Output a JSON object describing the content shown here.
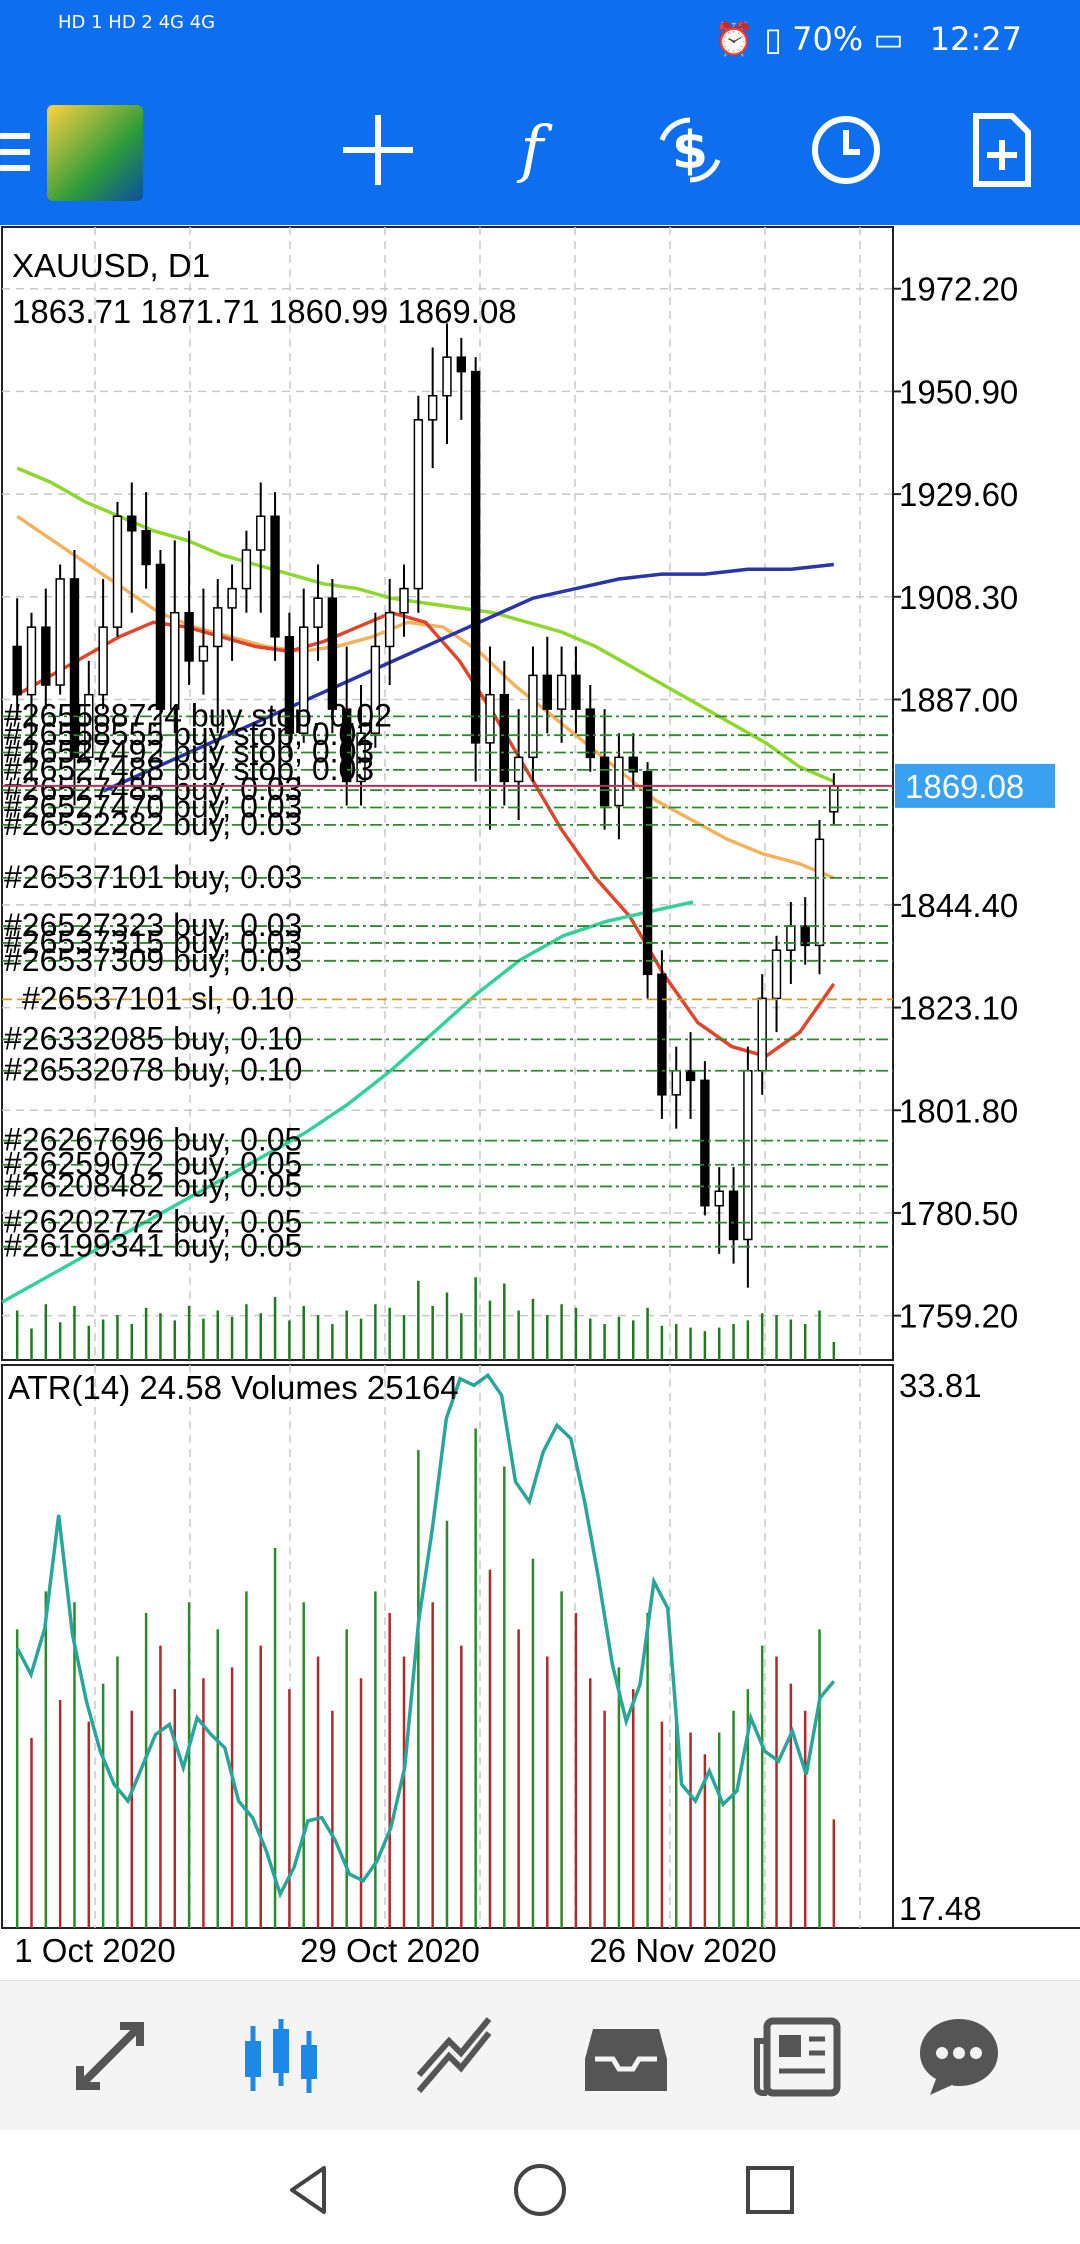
{
  "status_bar": {
    "network_left": "HD 1  HD 2  4G  4G",
    "battery": "70%",
    "time": "12:27",
    "icons": [
      "alarm-icon",
      "vibrate-icon",
      "battery-charging-icon"
    ]
  },
  "toolbar": {
    "icons": [
      "menu-icon",
      "metatrader-logo",
      "crosshair-icon",
      "indicators-icon",
      "symbol-icon",
      "timeframe-icon",
      "new-order-icon"
    ]
  },
  "chart_header": {
    "symbol": "XAUUSD, D1",
    "ohlc": "1863.71 1871.71 1860.99 1869.08"
  },
  "current_price_label": "1869.08",
  "chart_data": [
    {
      "type": "candlestick",
      "title": "XAUUSD, D1",
      "ylim": [
        1750,
        1985
      ],
      "y_ticks": [
        "1972.20",
        "1950.90",
        "1929.60",
        "1908.30",
        "1887.00",
        "1844.40",
        "1823.10",
        "1801.80",
        "1780.50",
        "1759.20"
      ],
      "x_ticks": [
        "1 Oct 2020",
        "29 Oct 2020",
        "26 Nov 2020"
      ],
      "current_price": 1869.08,
      "candles": [
        {
          "o": 1898,
          "h": 1908,
          "l": 1883,
          "c": 1888
        },
        {
          "o": 1888,
          "h": 1905,
          "l": 1870,
          "c": 1902
        },
        {
          "o": 1902,
          "h": 1910,
          "l": 1885,
          "c": 1890
        },
        {
          "o": 1890,
          "h": 1915,
          "l": 1888,
          "c": 1912
        },
        {
          "o": 1912,
          "h": 1918,
          "l": 1865,
          "c": 1875
        },
        {
          "o": 1875,
          "h": 1895,
          "l": 1873,
          "c": 1888
        },
        {
          "o": 1888,
          "h": 1912,
          "l": 1885,
          "c": 1902
        },
        {
          "o": 1902,
          "h": 1928,
          "l": 1900,
          "c": 1925
        },
        {
          "o": 1925,
          "h": 1932,
          "l": 1905,
          "c": 1922
        },
        {
          "o": 1922,
          "h": 1930,
          "l": 1910,
          "c": 1915
        },
        {
          "o": 1915,
          "h": 1918,
          "l": 1875,
          "c": 1885
        },
        {
          "o": 1885,
          "h": 1920,
          "l": 1880,
          "c": 1905
        },
        {
          "o": 1905,
          "h": 1922,
          "l": 1890,
          "c": 1895
        },
        {
          "o": 1895,
          "h": 1910,
          "l": 1888,
          "c": 1898
        },
        {
          "o": 1898,
          "h": 1912,
          "l": 1880,
          "c": 1906
        },
        {
          "o": 1906,
          "h": 1915,
          "l": 1895,
          "c": 1910
        },
        {
          "o": 1910,
          "h": 1922,
          "l": 1905,
          "c": 1918
        },
        {
          "o": 1918,
          "h": 1932,
          "l": 1905,
          "c": 1925
        },
        {
          "o": 1925,
          "h": 1930,
          "l": 1895,
          "c": 1900
        },
        {
          "o": 1900,
          "h": 1905,
          "l": 1875,
          "c": 1880
        },
        {
          "o": 1880,
          "h": 1910,
          "l": 1878,
          "c": 1902
        },
        {
          "o": 1902,
          "h": 1915,
          "l": 1895,
          "c": 1908
        },
        {
          "o": 1908,
          "h": 1912,
          "l": 1880,
          "c": 1885
        },
        {
          "o": 1885,
          "h": 1898,
          "l": 1865,
          "c": 1870
        },
        {
          "o": 1870,
          "h": 1890,
          "l": 1865,
          "c": 1880
        },
        {
          "o": 1880,
          "h": 1905,
          "l": 1877,
          "c": 1898
        },
        {
          "o": 1898,
          "h": 1912,
          "l": 1890,
          "c": 1905
        },
        {
          "o": 1905,
          "h": 1915,
          "l": 1900,
          "c": 1910
        },
        {
          "o": 1910,
          "h": 1950,
          "l": 1905,
          "c": 1945
        },
        {
          "o": 1945,
          "h": 1960,
          "l": 1935,
          "c": 1950
        },
        {
          "o": 1950,
          "h": 1965,
          "l": 1940,
          "c": 1958
        },
        {
          "o": 1958,
          "h": 1962,
          "l": 1945,
          "c": 1955
        },
        {
          "o": 1955,
          "h": 1958,
          "l": 1870,
          "c": 1878
        },
        {
          "o": 1878,
          "h": 1898,
          "l": 1860,
          "c": 1888
        },
        {
          "o": 1888,
          "h": 1895,
          "l": 1865,
          "c": 1870
        },
        {
          "o": 1870,
          "h": 1885,
          "l": 1862,
          "c": 1875
        },
        {
          "o": 1875,
          "h": 1898,
          "l": 1870,
          "c": 1892
        },
        {
          "o": 1892,
          "h": 1900,
          "l": 1880,
          "c": 1885
        },
        {
          "o": 1885,
          "h": 1898,
          "l": 1878,
          "c": 1892
        },
        {
          "o": 1892,
          "h": 1898,
          "l": 1880,
          "c": 1885
        },
        {
          "o": 1885,
          "h": 1890,
          "l": 1872,
          "c": 1875
        },
        {
          "o": 1875,
          "h": 1885,
          "l": 1860,
          "c": 1865
        },
        {
          "o": 1865,
          "h": 1880,
          "l": 1858,
          "c": 1875
        },
        {
          "o": 1875,
          "h": 1880,
          "l": 1868,
          "c": 1872
        },
        {
          "o": 1872,
          "h": 1874,
          "l": 1825,
          "c": 1830
        },
        {
          "o": 1830,
          "h": 1835,
          "l": 1800,
          "c": 1805
        },
        {
          "o": 1805,
          "h": 1815,
          "l": 1798,
          "c": 1810
        },
        {
          "o": 1810,
          "h": 1818,
          "l": 1800,
          "c": 1808
        },
        {
          "o": 1808,
          "h": 1812,
          "l": 1780,
          "c": 1782
        },
        {
          "o": 1782,
          "h": 1790,
          "l": 1772,
          "c": 1785
        },
        {
          "o": 1785,
          "h": 1790,
          "l": 1770,
          "c": 1775
        },
        {
          "o": 1775,
          "h": 1815,
          "l": 1765,
          "c": 1810
        },
        {
          "o": 1810,
          "h": 1830,
          "l": 1805,
          "c": 1825
        },
        {
          "o": 1825,
          "h": 1838,
          "l": 1818,
          "c": 1835
        },
        {
          "o": 1835,
          "h": 1845,
          "l": 1828,
          "c": 1840
        },
        {
          "o": 1840,
          "h": 1846,
          "l": 1832,
          "c": 1836
        },
        {
          "o": 1836,
          "h": 1862,
          "l": 1830,
          "c": 1858
        },
        {
          "o": 1863.71,
          "h": 1871.71,
          "l": 1860.99,
          "c": 1869.08
        }
      ],
      "overlays": [
        {
          "name": "",
          "color": "#8fd62f",
          "values": [
            1935,
            1932,
            1928,
            1925,
            1922,
            1920,
            1917,
            1915,
            1913,
            1911,
            1910,
            1908,
            1907,
            1906,
            1905,
            1903,
            1901,
            1898,
            1894,
            1890,
            1886,
            1882,
            1878,
            1873,
            1870
          ]
        },
        {
          "name": "",
          "color": "#f2b25e",
          "values": [
            1925,
            1920,
            1915,
            1910,
            1905,
            1902,
            1900,
            1898,
            1897,
            1898,
            1900,
            1903,
            1902,
            1897,
            1890,
            1884,
            1878,
            1872,
            1866,
            1862,
            1858,
            1855,
            1853,
            1850
          ]
        },
        {
          "name": "",
          "color": "#e0462b",
          "values": [
            1888,
            1892,
            1896,
            1900,
            1903,
            1902,
            1900,
            1898,
            1897,
            1899,
            1902,
            1905,
            1903,
            1895,
            1884,
            1872,
            1860,
            1850,
            1842,
            1830,
            1820,
            1815,
            1813,
            1818,
            1828
          ]
        },
        {
          "name": "",
          "color": "#2a35a8",
          "values": [
            1868,
            1872,
            1876,
            1880,
            1884,
            1888,
            1892,
            1896,
            1900,
            1904,
            1908,
            1910,
            1912,
            1913,
            1913,
            1914,
            1914,
            1915
          ]
        },
        {
          "name": "",
          "color": "#33d09a",
          "values": [
            1762,
            1767,
            1772,
            1777,
            1782,
            1787,
            1792,
            1797,
            1803,
            1810,
            1818,
            1826,
            1833,
            1838,
            1841,
            1843,
            1845
          ]
        }
      ],
      "order_lines": [
        {
          "price": 1883.5,
          "label": "#2655887?4 buy stop, 0.02"
        },
        {
          "price": 1879.6,
          "label": "#26558555 buy stop, 0.02"
        },
        {
          "price": 1876.0,
          "label": "#26527492 buy stop, 0.03"
        },
        {
          "price": 1872.4,
          "label": "#26527488 buy stop, 0.03"
        },
        {
          "price": 1868.2,
          "label": "#26527485 buy, 0.03"
        },
        {
          "price": 1864.6,
          "label": "#26527470 buy, 0.03"
        },
        {
          "price": 1861.0,
          "label": "#26532282 buy, 0.03"
        },
        {
          "price": 1850.0,
          "label": "#26537101 buy, 0.03"
        },
        {
          "price": 1840.0,
          "label": "#26527323 buy, 0.03"
        },
        {
          "price": 1836.5,
          "label": "#26537315 buy, 0.03"
        },
        {
          "price": 1832.8,
          "label": "#26537309 buy, 0.03"
        },
        {
          "price": 1824.8,
          "label": "#26537101 sl, 0.10"
        },
        {
          "price": 1816.5,
          "label": "#26332085 buy, 0.10"
        },
        {
          "price": 1810.0,
          "label": "#26532078 buy, 0.10"
        },
        {
          "price": 1795.5,
          "label": "#26267696 buy, 0.05"
        },
        {
          "price": 1790.5,
          "label": "#26259072 buy, 0.05"
        },
        {
          "price": 1786.0,
          "label": "#26208482 buy, 0.05"
        },
        {
          "price": 1778.5,
          "label": "#26202772 buy, 0.05"
        },
        {
          "price": 1773.5,
          "label": "#26199341 buy, 0.05"
        }
      ]
    },
    {
      "type": "bar",
      "title": "ATR(14) 24.58 Volumes 25164",
      "ylim": [
        17.48,
        33.81
      ],
      "y_ticks": [
        "33.81",
        "17.48"
      ],
      "volumes": [
        0.55,
        0.35,
        0.62,
        0.42,
        0.6,
        0.38,
        0.45,
        0.5,
        0.4,
        0.58,
        0.52,
        0.44,
        0.6,
        0.46,
        0.55,
        0.48,
        0.62,
        0.52,
        0.7,
        0.44,
        0.6,
        0.5,
        0.4,
        0.55,
        0.46,
        0.62,
        0.58,
        0.5,
        0.88,
        0.6,
        0.75,
        0.52,
        0.92,
        0.66,
        0.85,
        0.55,
        0.68,
        0.5,
        0.62,
        0.58,
        0.46,
        0.4,
        0.48,
        0.44,
        0.58,
        0.38,
        0.4,
        0.36,
        0.32,
        0.36,
        0.4,
        0.44,
        0.52,
        0.5,
        0.45,
        0.4,
        0.55,
        0.2
      ],
      "atr": [
        25.6,
        24.8,
        26.2,
        29.6,
        26.0,
        24.0,
        22.5,
        21.5,
        21.0,
        22.0,
        23.0,
        23.3,
        22.0,
        23.5,
        23.0,
        22.6,
        21.0,
        20.5,
        19.5,
        18.2,
        19.0,
        20.4,
        20.5,
        19.8,
        18.8,
        18.6,
        19.2,
        20.2,
        22.0,
        26.4,
        29.2,
        32.5,
        33.7,
        33.5,
        33.8,
        33.2,
        30.6,
        30.0,
        31.5,
        32.3,
        31.9,
        30.0,
        27.7,
        25.1,
        23.4,
        24.5,
        27.6,
        26.8,
        21.5,
        21.0,
        21.9,
        20.9,
        21.3,
        23.5,
        22.5,
        22.2,
        23.1,
        21.8,
        24.1,
        24.6
      ]
    }
  ],
  "bottom_nav": {
    "items": [
      "quotes-icon",
      "chart-icon",
      "trade-icon",
      "history-icon",
      "news-icon",
      "chat-icon"
    ]
  },
  "system_nav": {
    "items": [
      "back-icon",
      "home-icon",
      "recents-icon"
    ]
  }
}
